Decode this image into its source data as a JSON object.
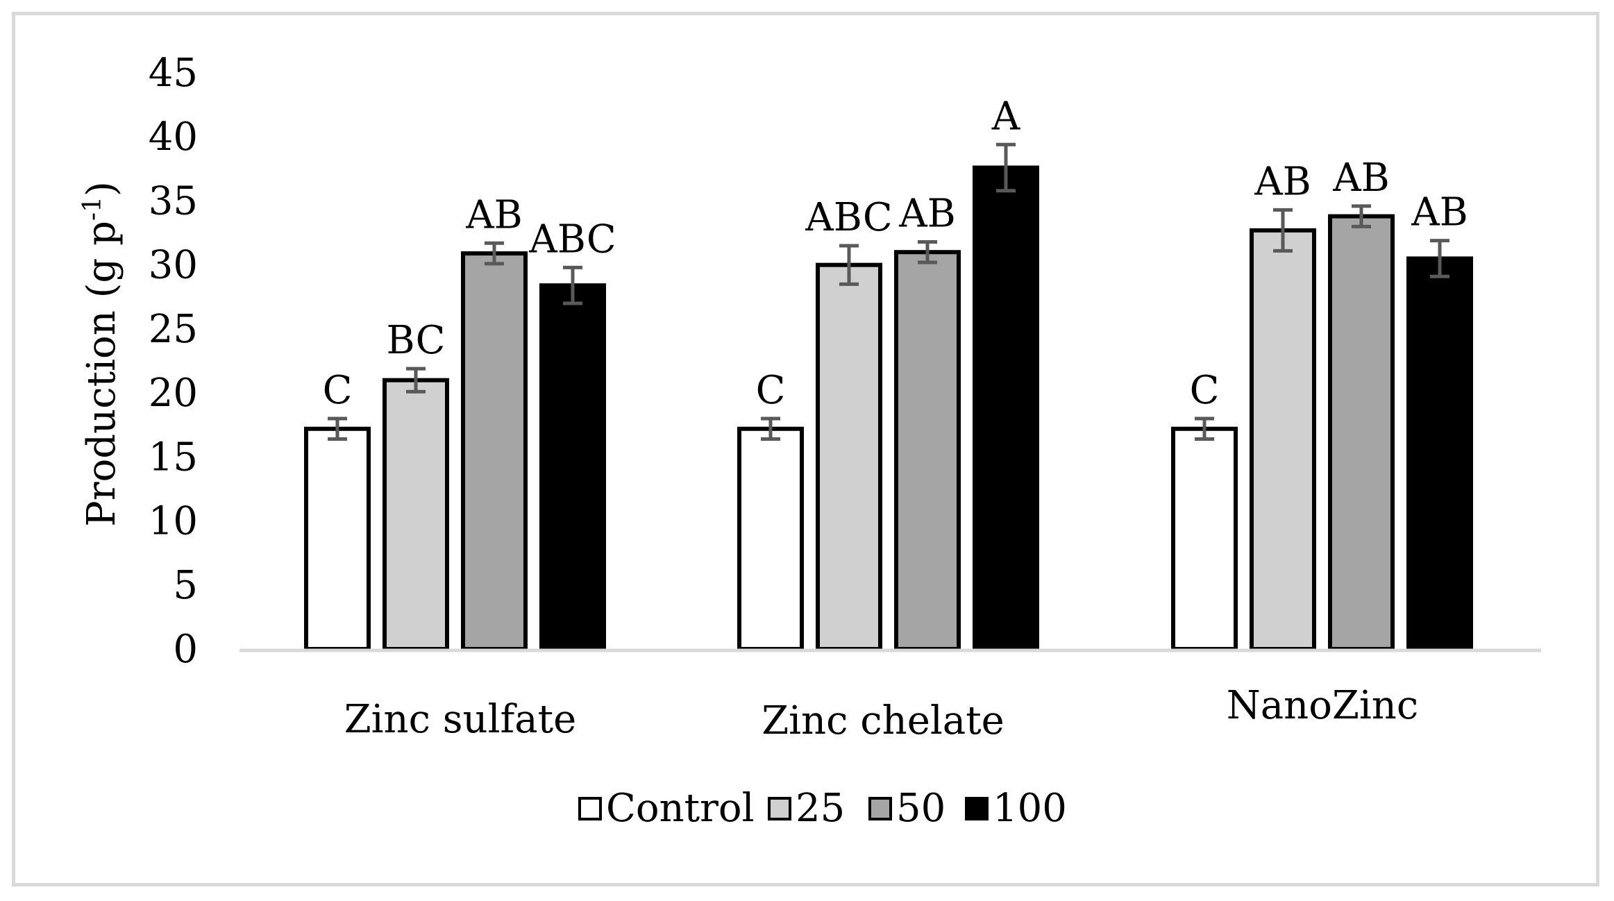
{
  "chart_data": {
    "type": "bar",
    "title": "",
    "xlabel": "",
    "ylabel": "Production (g p",
    "ylabel_superscript": "-1",
    "ylabel_suffix": ")",
    "ylim": [
      0,
      45
    ],
    "yticks": [
      "0",
      "5",
      "10",
      "15",
      "20",
      "25",
      "30",
      "35",
      "40",
      "45"
    ],
    "grid": false,
    "legend_position": "bottom",
    "categories": [
      "Zinc sulfate",
      "Zinc chelate",
      "NanoZinc"
    ],
    "series": [
      {
        "name": "Control",
        "color": "#ffffff",
        "values": [
          17.2,
          17.2,
          17.2
        ],
        "errors": [
          0.8,
          0.8,
          0.8
        ],
        "labels": [
          "C",
          "C",
          "C"
        ]
      },
      {
        "name": "25",
        "color": "#d0d0d0",
        "values": [
          21.0,
          30.0,
          32.7
        ],
        "errors": [
          0.9,
          1.5,
          1.6
        ],
        "labels": [
          "BC",
          "ABC",
          "AB"
        ]
      },
      {
        "name": "50",
        "color": "#a5a5a5",
        "values": [
          30.9,
          31.0,
          33.8
        ],
        "errors": [
          0.8,
          0.8,
          0.8
        ],
        "labels": [
          "AB",
          "AB",
          "AB"
        ]
      },
      {
        "name": "100",
        "color": "#000000",
        "values": [
          28.4,
          37.6,
          30.5
        ],
        "errors": [
          1.4,
          1.8,
          1.4
        ],
        "labels": [
          "ABC",
          "A",
          "AB"
        ]
      }
    ]
  },
  "colors": {
    "axis": "#d9d9d9",
    "error_bar": "#595959",
    "frame": "#d9d9d9"
  }
}
